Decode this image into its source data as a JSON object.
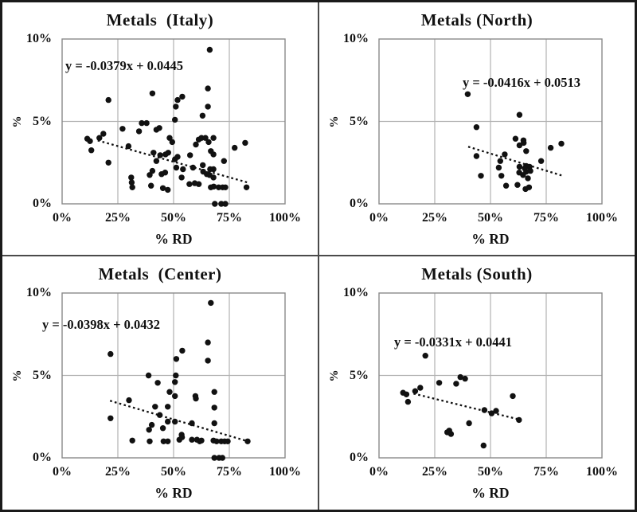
{
  "figure": {
    "description": "Four scatter plots of % vs % RD for the Metals sector by Italian macro-region",
    "marker_color": "#111111",
    "grid_color": "#b2b2b2",
    "frame_color": "#8a8a8a",
    "divider_color": "#4a4a4a"
  },
  "chart_data": [
    {
      "type": "scatter",
      "title": "Metals  (Italy)",
      "region": "Italy",
      "equation": "y = -0.0379x + 0.0445",
      "trend": {
        "slope": -0.0379,
        "intercept": 0.0445,
        "x_start": 16,
        "x_end": 83.5,
        "style": "dotted"
      },
      "xlabel": "% RD",
      "ylabel": "%",
      "xlim": [
        0,
        100
      ],
      "ylim": [
        0,
        10
      ],
      "xticks": [
        "0%",
        "25%",
        "50%",
        "75%",
        "100%"
      ],
      "yticks": [
        "0%",
        "5%",
        "10%"
      ],
      "grid": true,
      "legend": false,
      "eq_pos": [
        79,
        70
      ],
      "points": [
        [
          66.2,
          9.35
        ],
        [
          40.5,
          6.7
        ],
        [
          20.8,
          6.3
        ],
        [
          51.8,
          6.3
        ],
        [
          53.9,
          6.5
        ],
        [
          65.4,
          7.0
        ],
        [
          51.0,
          5.9
        ],
        [
          65.4,
          5.9
        ],
        [
          63.0,
          5.35
        ],
        [
          50.6,
          5.1
        ],
        [
          35.7,
          4.9
        ],
        [
          37.9,
          4.9
        ],
        [
          42.3,
          4.5
        ],
        [
          43.6,
          4.6
        ],
        [
          27.1,
          4.55
        ],
        [
          34.5,
          4.4
        ],
        [
          18.5,
          4.25
        ],
        [
          16.7,
          4.0
        ],
        [
          11.3,
          3.95
        ],
        [
          12.5,
          3.8
        ],
        [
          13.1,
          3.25
        ],
        [
          48.2,
          4.0
        ],
        [
          49.4,
          3.75
        ],
        [
          60.0,
          3.6
        ],
        [
          61.3,
          3.9
        ],
        [
          62.5,
          4.0
        ],
        [
          64.3,
          4.0
        ],
        [
          65.7,
          3.75
        ],
        [
          67.9,
          4.0
        ],
        [
          77.4,
          3.4
        ],
        [
          82.1,
          3.7
        ],
        [
          29.8,
          3.5
        ],
        [
          41.0,
          3.1
        ],
        [
          44.0,
          2.95
        ],
        [
          46.4,
          3.0
        ],
        [
          47.6,
          3.1
        ],
        [
          50.6,
          2.7
        ],
        [
          42.3,
          2.6
        ],
        [
          51.8,
          2.85
        ],
        [
          57.4,
          2.95
        ],
        [
          66.7,
          3.2
        ],
        [
          67.9,
          3.0
        ],
        [
          72.6,
          2.6
        ],
        [
          20.8,
          2.5
        ],
        [
          51.2,
          2.2
        ],
        [
          54.2,
          2.1
        ],
        [
          58.7,
          2.2
        ],
        [
          63.1,
          2.35
        ],
        [
          63.3,
          1.95
        ],
        [
          66.4,
          2.1
        ],
        [
          67.9,
          2.1
        ],
        [
          39.3,
          1.75
        ],
        [
          40.5,
          2.0
        ],
        [
          44.6,
          1.8
        ],
        [
          46.2,
          1.9
        ],
        [
          31.0,
          1.6
        ],
        [
          31.2,
          1.3
        ],
        [
          31.5,
          1.0
        ],
        [
          53.6,
          1.6
        ],
        [
          64.9,
          1.8
        ],
        [
          66.1,
          1.75
        ],
        [
          67.9,
          1.6
        ],
        [
          39.9,
          1.1
        ],
        [
          45.2,
          0.95
        ],
        [
          47.4,
          0.85
        ],
        [
          57.1,
          1.2
        ],
        [
          59.5,
          1.25
        ],
        [
          61.3,
          1.2
        ],
        [
          66.7,
          1.0
        ],
        [
          68.0,
          1.05
        ],
        [
          70.2,
          1.0
        ],
        [
          72.0,
          1.0
        ],
        [
          73.2,
          1.0
        ],
        [
          82.7,
          1.0
        ],
        [
          68.5,
          0
        ],
        [
          71.4,
          0
        ],
        [
          73.2,
          0
        ]
      ]
    },
    {
      "type": "scatter",
      "title": "Metals (North)",
      "region": "North",
      "equation": "y = -0.0416x + 0.0513",
      "trend": {
        "slope": -0.0416,
        "intercept": 0.0513,
        "x_start": 40,
        "x_end": 83,
        "style": "dotted"
      },
      "xlabel": "% RD",
      "ylabel": "%",
      "xlim": [
        0,
        100
      ],
      "ylim": [
        0,
        10
      ],
      "xticks": [
        "0%",
        "25%",
        "50%",
        "75%",
        "100%"
      ],
      "yticks": [
        "0%",
        "5%",
        "10%"
      ],
      "grid": true,
      "legend": false,
      "eq_pos": [
        180,
        91
      ],
      "points": [
        [
          39.8,
          6.65
        ],
        [
          43.7,
          4.65
        ],
        [
          63.0,
          5.4
        ],
        [
          61.2,
          3.95
        ],
        [
          64.8,
          3.85
        ],
        [
          63.0,
          3.55
        ],
        [
          64.9,
          3.7
        ],
        [
          77.0,
          3.4
        ],
        [
          81.8,
          3.65
        ],
        [
          66.0,
          3.2
        ],
        [
          43.7,
          2.9
        ],
        [
          56.4,
          3.0
        ],
        [
          54.4,
          2.6
        ],
        [
          72.7,
          2.6
        ],
        [
          53.7,
          2.2
        ],
        [
          63.0,
          2.25
        ],
        [
          66.0,
          2.3
        ],
        [
          67.5,
          2.25
        ],
        [
          65.4,
          2.15
        ],
        [
          66.0,
          1.95
        ],
        [
          64.6,
          1.75
        ],
        [
          62.9,
          1.9
        ],
        [
          67.9,
          2.0
        ],
        [
          45.7,
          1.7
        ],
        [
          54.9,
          1.7
        ],
        [
          66.8,
          1.55
        ],
        [
          57.0,
          1.1
        ],
        [
          62.1,
          1.15
        ],
        [
          65.7,
          0.9
        ],
        [
          67.3,
          1.0
        ]
      ]
    },
    {
      "type": "scatter",
      "title": "Metals  (Center)",
      "region": "Center",
      "equation": "y = -0.0398x + 0.0432",
      "trend": {
        "slope": -0.0398,
        "intercept": 0.0432,
        "x_start": 21.5,
        "x_end": 83.5,
        "style": "dotted"
      },
      "xlabel": "% RD",
      "ylabel": "%",
      "xlim": [
        0,
        100
      ],
      "ylim": [
        0,
        10
      ],
      "xticks": [
        "0%",
        "25%",
        "50%",
        "75%",
        "100%"
      ],
      "yticks": [
        "0%",
        "5%",
        "10%"
      ],
      "grid": true,
      "legend": false,
      "eq_pos": [
        50,
        76
      ],
      "points": [
        [
          66.7,
          9.4
        ],
        [
          65.4,
          7.0
        ],
        [
          53.9,
          6.5
        ],
        [
          21.7,
          6.3
        ],
        [
          51.2,
          6.0
        ],
        [
          65.4,
          5.9
        ],
        [
          38.8,
          5.0
        ],
        [
          51.0,
          5.0
        ],
        [
          42.9,
          4.55
        ],
        [
          50.6,
          4.6
        ],
        [
          48.2,
          4.0
        ],
        [
          50.6,
          3.75
        ],
        [
          68.3,
          4.0
        ],
        [
          60.0,
          3.6
        ],
        [
          59.8,
          3.75
        ],
        [
          30.0,
          3.5
        ],
        [
          41.7,
          3.1
        ],
        [
          47.4,
          3.1
        ],
        [
          68.3,
          3.05
        ],
        [
          43.8,
          2.6
        ],
        [
          21.7,
          2.4
        ],
        [
          47.4,
          2.2
        ],
        [
          50.6,
          2.2
        ],
        [
          58.2,
          2.1
        ],
        [
          68.3,
          2.1
        ],
        [
          40.2,
          2.0
        ],
        [
          45.2,
          1.8
        ],
        [
          39.0,
          1.7
        ],
        [
          53.6,
          1.4
        ],
        [
          53.8,
          1.25
        ],
        [
          31.5,
          1.05
        ],
        [
          39.3,
          1.0
        ],
        [
          45.5,
          1.0
        ],
        [
          47.4,
          1.0
        ],
        [
          52.6,
          1.1
        ],
        [
          58.2,
          1.1
        ],
        [
          60.5,
          1.1
        ],
        [
          61.7,
          1.0
        ],
        [
          62.5,
          1.05
        ],
        [
          67.9,
          1.05
        ],
        [
          69.3,
          1.0
        ],
        [
          71.4,
          1.0
        ],
        [
          72.9,
          1.0
        ],
        [
          74.3,
          1.0
        ],
        [
          83.2,
          1.0
        ],
        [
          68.3,
          0
        ],
        [
          70.4,
          0
        ],
        [
          71.9,
          0
        ]
      ]
    },
    {
      "type": "scatter",
      "title": "Metals (South)",
      "region": "South",
      "equation": "y = -0.0331x + 0.0441",
      "trend": {
        "slope": -0.0331,
        "intercept": 0.0441,
        "x_start": 15.5,
        "x_end": 63,
        "style": "dotted"
      },
      "xlabel": "% RD",
      "ylabel": "%",
      "xlim": [
        0,
        100
      ],
      "ylim": [
        0,
        10
      ],
      "xticks": [
        "0%",
        "25%",
        "50%",
        "75%",
        "100%"
      ],
      "yticks": [
        "0%",
        "5%",
        "10%"
      ],
      "grid": true,
      "legend": false,
      "eq_pos": [
        94,
        98
      ],
      "points": [
        [
          20.8,
          6.2
        ],
        [
          10.8,
          3.95
        ],
        [
          12.3,
          3.85
        ],
        [
          13.0,
          3.4
        ],
        [
          16.2,
          4.05
        ],
        [
          18.5,
          4.25
        ],
        [
          27.0,
          4.55
        ],
        [
          34.6,
          4.5
        ],
        [
          36.5,
          4.9
        ],
        [
          38.6,
          4.8
        ],
        [
          60.0,
          3.75
        ],
        [
          47.3,
          2.9
        ],
        [
          50.5,
          2.7
        ],
        [
          52.5,
          2.85
        ],
        [
          62.8,
          2.3
        ],
        [
          40.4,
          2.1
        ],
        [
          30.6,
          1.55
        ],
        [
          31.5,
          1.65
        ],
        [
          32.3,
          1.45
        ],
        [
          46.9,
          0.75
        ]
      ]
    }
  ]
}
